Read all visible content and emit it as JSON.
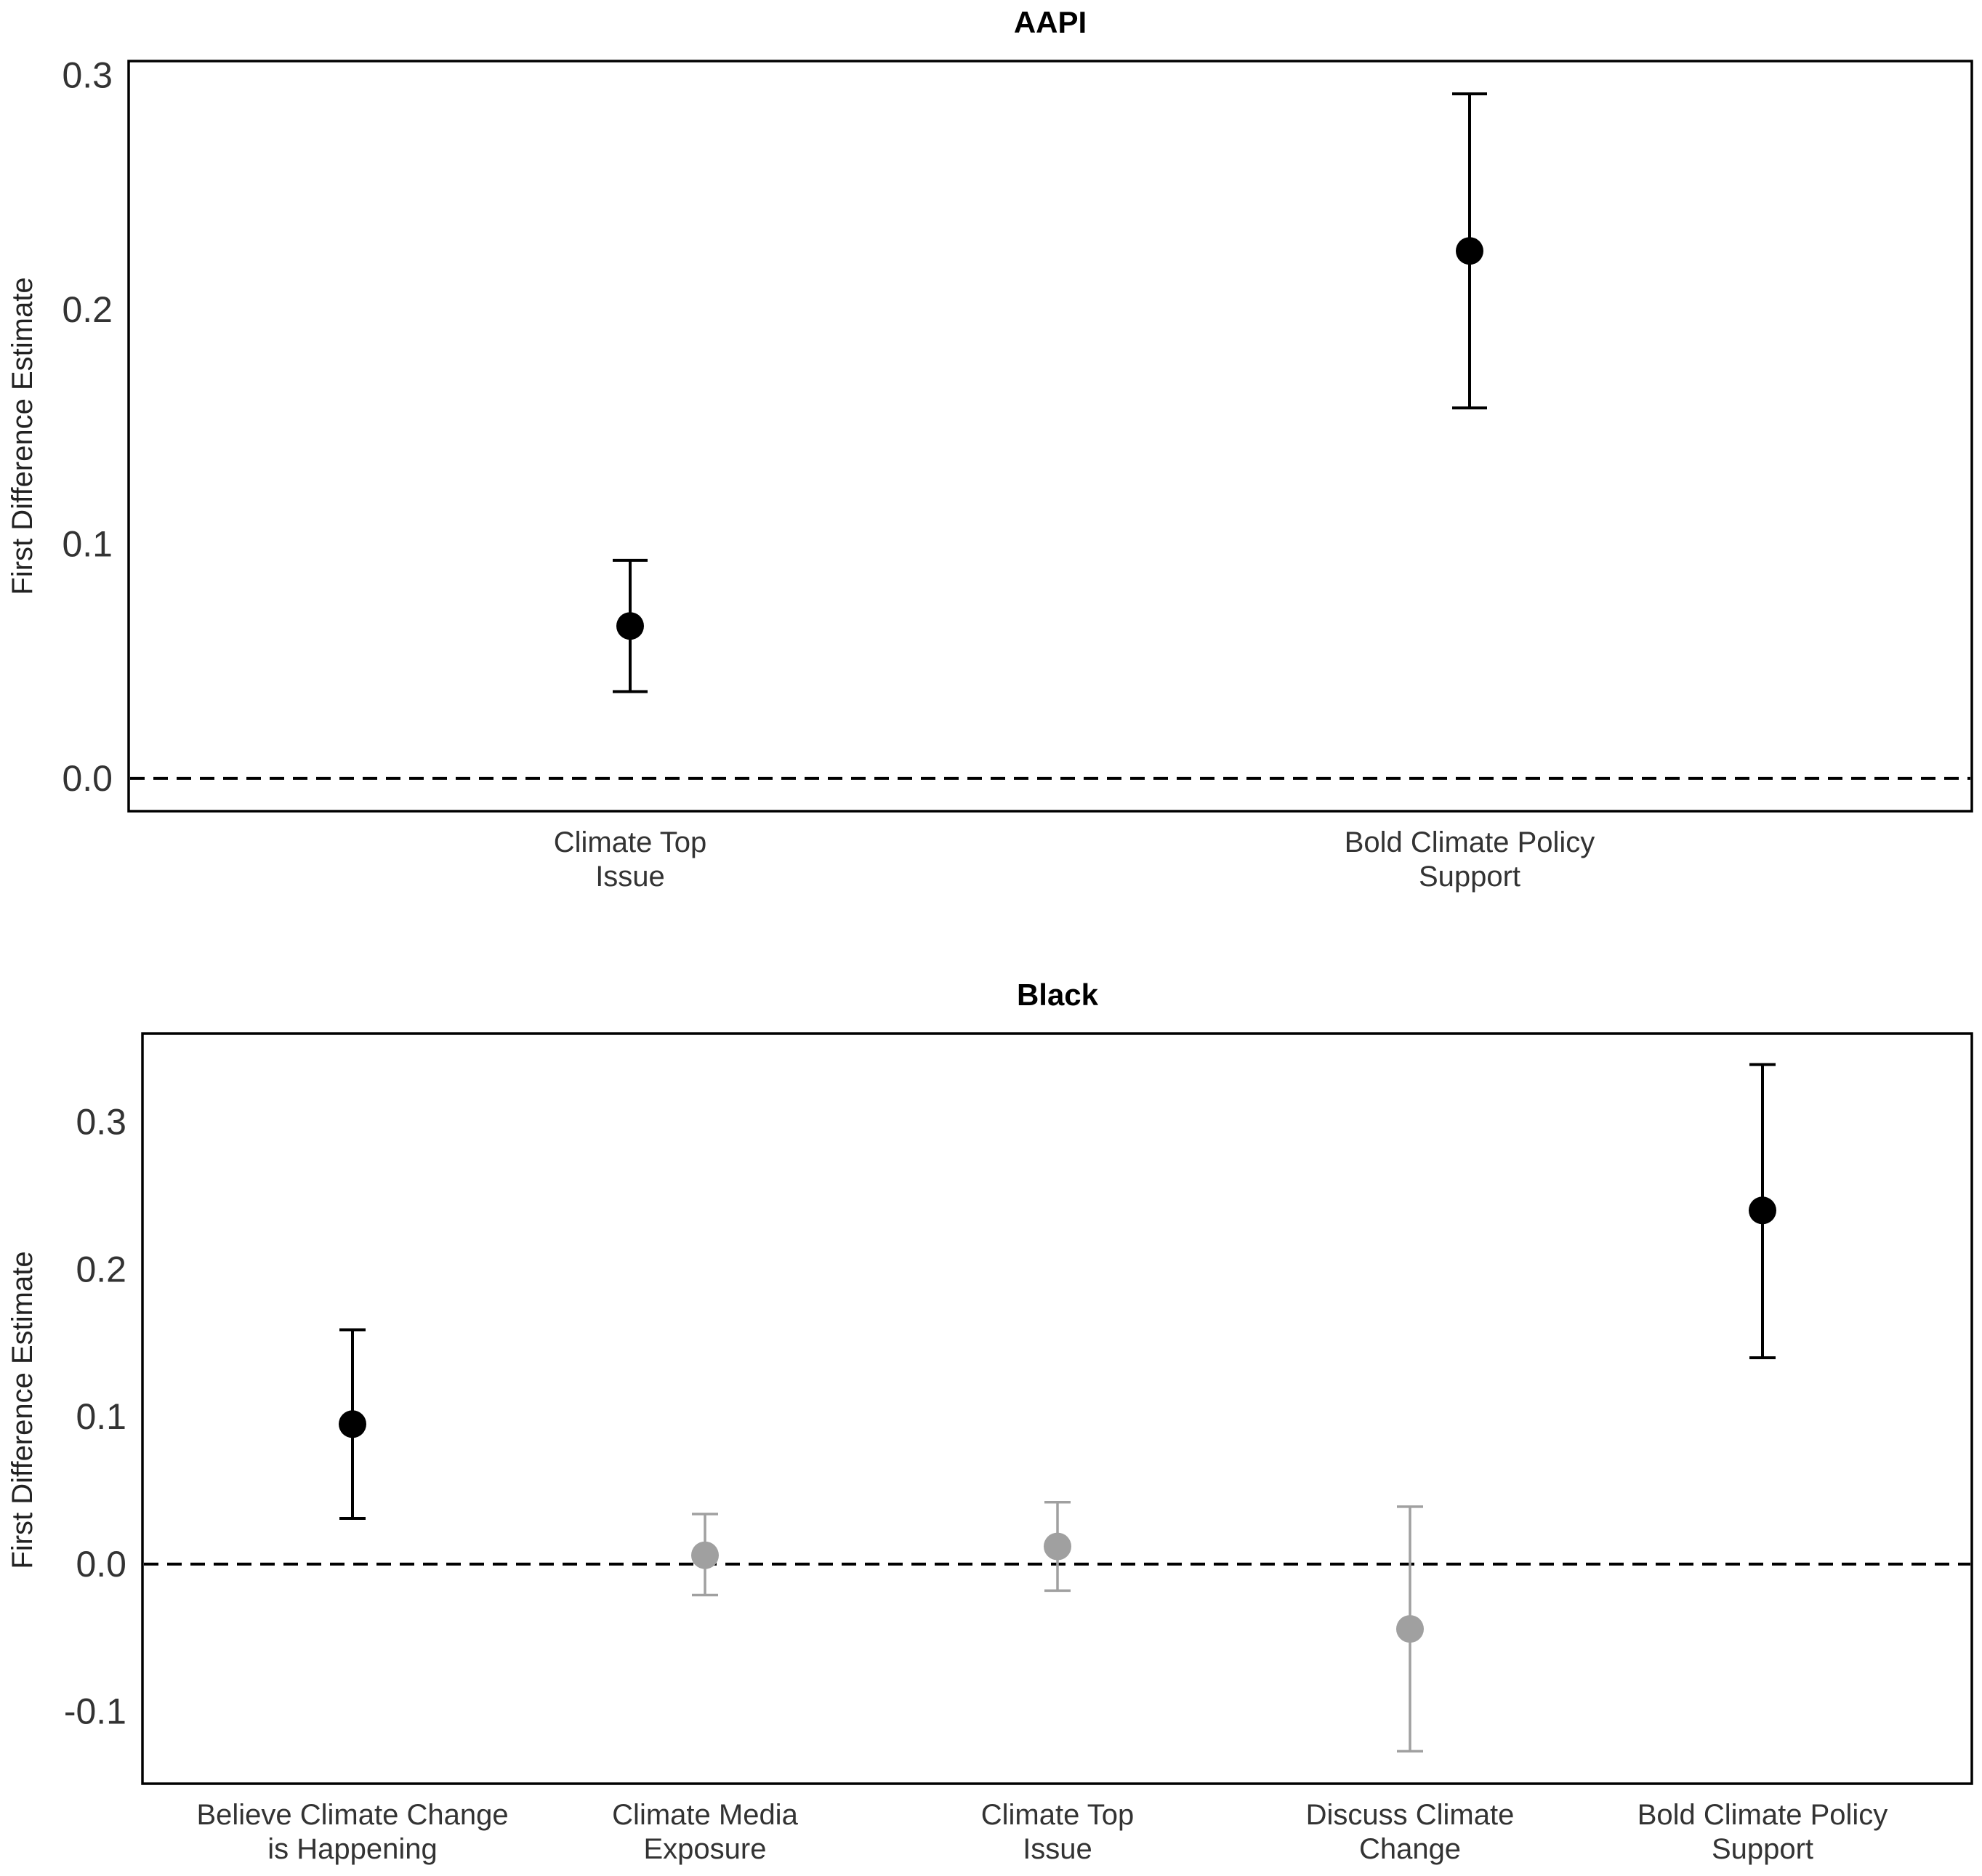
{
  "chart_data": [
    {
      "type": "scatter",
      "title": "AAPI",
      "ylabel": "First Difference Estimate",
      "ylim": [
        -0.014,
        0.306
      ],
      "yticks": [
        0.0,
        0.1,
        0.2,
        0.3
      ],
      "ytick_labels": [
        "0.0",
        "0.1",
        "0.2",
        "0.3"
      ],
      "reference_line": 0.0,
      "categories": [
        [
          "Climate Top",
          "Issue"
        ],
        [
          "Bold Climate Policy",
          "Support"
        ]
      ],
      "points": [
        {
          "estimate": 0.065,
          "lower": 0.037,
          "upper": 0.093,
          "significant": true
        },
        {
          "estimate": 0.225,
          "lower": 0.158,
          "upper": 0.292,
          "significant": true
        }
      ],
      "colors": {
        "significant": "#000000",
        "not_significant": "#a0a0a0"
      }
    },
    {
      "type": "scatter",
      "title": "Black",
      "ylabel": "First Difference Estimate",
      "ylim": [
        -0.149,
        0.36
      ],
      "yticks": [
        -0.1,
        0.0,
        0.1,
        0.2,
        0.3
      ],
      "ytick_labels": [
        "-0.1",
        "0.0",
        "0.1",
        "0.2",
        "0.3"
      ],
      "reference_line": 0.0,
      "categories": [
        [
          "Believe Climate Change",
          "is Happening"
        ],
        [
          "Climate Media",
          "Exposure"
        ],
        [
          "Climate Top",
          "Issue"
        ],
        [
          "Discuss Climate",
          "Change"
        ],
        [
          "Bold Climate Policy",
          "Support"
        ]
      ],
      "points": [
        {
          "estimate": 0.095,
          "lower": 0.031,
          "upper": 0.159,
          "significant": true
        },
        {
          "estimate": 0.006,
          "lower": -0.021,
          "upper": 0.034,
          "significant": false
        },
        {
          "estimate": 0.012,
          "lower": -0.018,
          "upper": 0.042,
          "significant": false
        },
        {
          "estimate": -0.044,
          "lower": -0.127,
          "upper": 0.039,
          "significant": false
        },
        {
          "estimate": 0.24,
          "lower": 0.14,
          "upper": 0.339,
          "significant": true
        }
      ],
      "colors": {
        "significant": "#000000",
        "not_significant": "#a0a0a0"
      }
    }
  ]
}
